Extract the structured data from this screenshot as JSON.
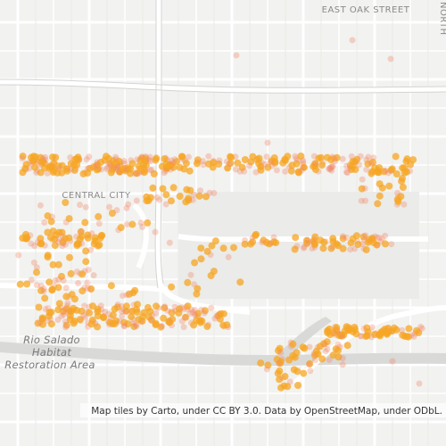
{
  "map": {
    "labels": {
      "street": "EAST OAK STREET",
      "north": "NORTH",
      "district": "CENTRAL CITY",
      "park": [
        "Rio Salado",
        "Habitat",
        "Restoration Area"
      ]
    },
    "attribution": "Map tiles by Carto, under CC BY 3.0. Data by OpenStreetMap, under ODbL."
  }
}
